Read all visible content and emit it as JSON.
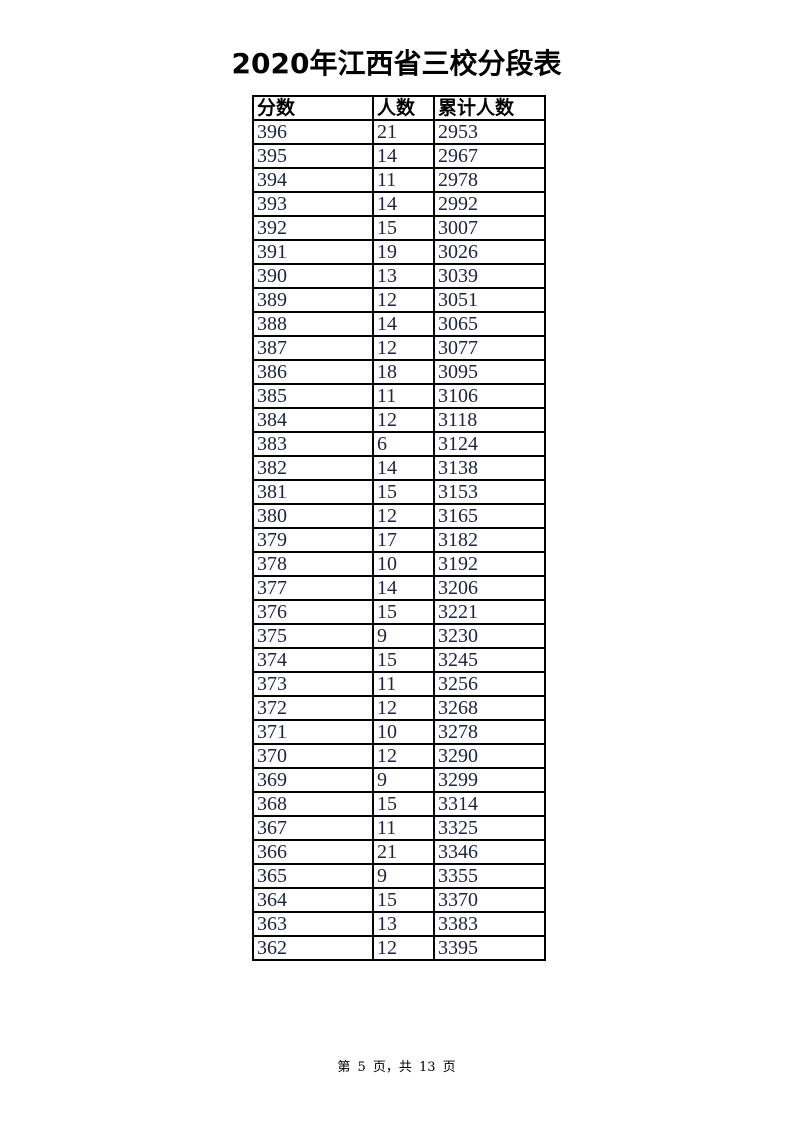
{
  "title": "2020年江西省三校分段表",
  "table": {
    "headers": [
      "分数",
      "人数",
      "累计人数"
    ],
    "rows": [
      [
        "396",
        "21",
        "2953"
      ],
      [
        "395",
        "14",
        "2967"
      ],
      [
        "394",
        "11",
        "2978"
      ],
      [
        "393",
        "14",
        "2992"
      ],
      [
        "392",
        "15",
        "3007"
      ],
      [
        "391",
        "19",
        "3026"
      ],
      [
        "390",
        "13",
        "3039"
      ],
      [
        "389",
        "12",
        "3051"
      ],
      [
        "388",
        "14",
        "3065"
      ],
      [
        "387",
        "12",
        "3077"
      ],
      [
        "386",
        "18",
        "3095"
      ],
      [
        "385",
        "11",
        "3106"
      ],
      [
        "384",
        "12",
        "3118"
      ],
      [
        "383",
        "6",
        "3124"
      ],
      [
        "382",
        "14",
        "3138"
      ],
      [
        "381",
        "15",
        "3153"
      ],
      [
        "380",
        "12",
        "3165"
      ],
      [
        "379",
        "17",
        "3182"
      ],
      [
        "378",
        "10",
        "3192"
      ],
      [
        "377",
        "14",
        "3206"
      ],
      [
        "376",
        "15",
        "3221"
      ],
      [
        "375",
        "9",
        "3230"
      ],
      [
        "374",
        "15",
        "3245"
      ],
      [
        "373",
        "11",
        "3256"
      ],
      [
        "372",
        "12",
        "3268"
      ],
      [
        "371",
        "10",
        "3278"
      ],
      [
        "370",
        "12",
        "3290"
      ],
      [
        "369",
        "9",
        "3299"
      ],
      [
        "368",
        "15",
        "3314"
      ],
      [
        "367",
        "11",
        "3325"
      ],
      [
        "366",
        "21",
        "3346"
      ],
      [
        "365",
        "9",
        "3355"
      ],
      [
        "364",
        "15",
        "3370"
      ],
      [
        "363",
        "13",
        "3383"
      ],
      [
        "362",
        "12",
        "3395"
      ]
    ]
  },
  "footer": "第 5 页，共 13 页"
}
